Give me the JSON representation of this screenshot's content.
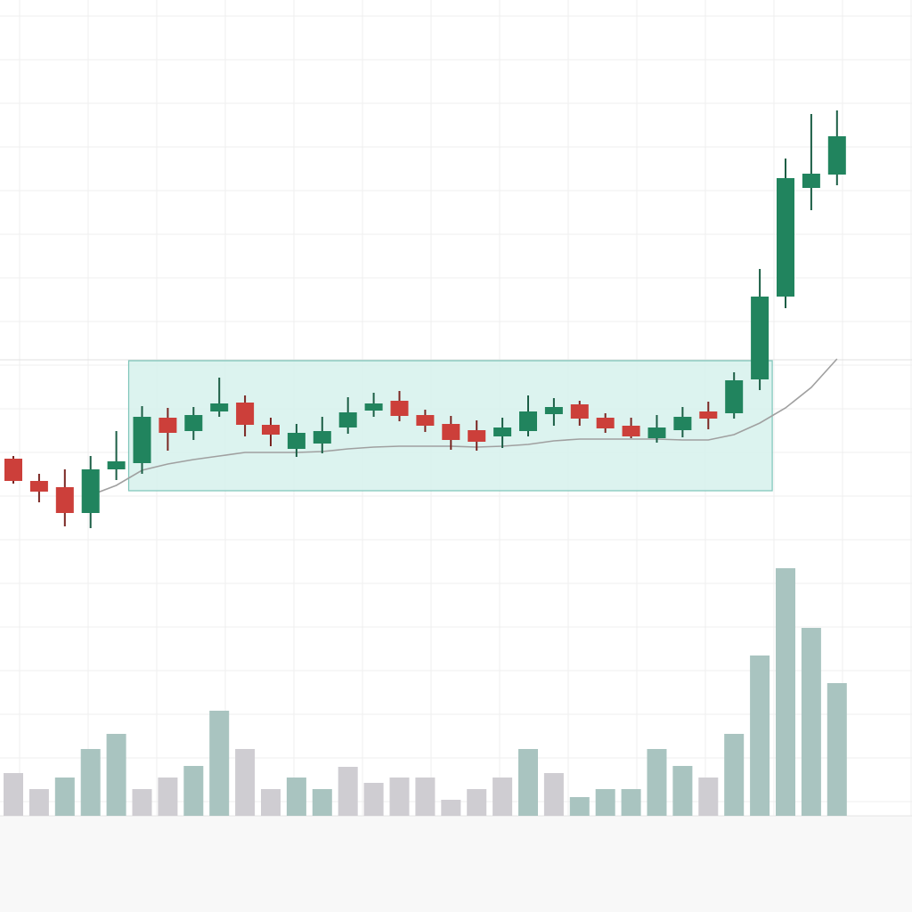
{
  "chart_data": {
    "type": "candlestick",
    "title": "",
    "xlabel": "",
    "ylabel": "",
    "grid": true,
    "legend": "none",
    "ylim": [
      0,
      100
    ],
    "colors": {
      "up": "#21845e",
      "down": "#cc3f3a",
      "volume_up": "#a9c4c0",
      "volume_down": "#cfcdd2",
      "moving_average": "#a0a0a0",
      "highlight_fill": "#d6f1ec",
      "highlight_border": "#7cc4b8"
    },
    "candles": [
      {
        "o": 48.5,
        "h": 48.8,
        "l": 45.7,
        "c": 46.0
      },
      {
        "o": 46.0,
        "h": 46.8,
        "l": 43.6,
        "c": 44.8
      },
      {
        "o": 45.3,
        "h": 47.3,
        "l": 40.9,
        "c": 42.4
      },
      {
        "o": 42.4,
        "h": 48.8,
        "l": 40.7,
        "c": 47.3
      },
      {
        "o": 47.3,
        "h": 51.6,
        "l": 46.1,
        "c": 48.2
      },
      {
        "o": 48.0,
        "h": 54.4,
        "l": 46.8,
        "c": 53.2
      },
      {
        "o": 53.1,
        "h": 54.2,
        "l": 49.4,
        "c": 51.4
      },
      {
        "o": 51.6,
        "h": 54.3,
        "l": 50.6,
        "c": 53.4
      },
      {
        "o": 53.8,
        "h": 57.6,
        "l": 53.2,
        "c": 54.7
      },
      {
        "o": 54.8,
        "h": 55.6,
        "l": 51.0,
        "c": 52.3
      },
      {
        "o": 52.3,
        "h": 53.1,
        "l": 49.9,
        "c": 51.2
      },
      {
        "o": 49.6,
        "h": 52.4,
        "l": 48.7,
        "c": 51.4
      },
      {
        "o": 50.2,
        "h": 53.2,
        "l": 49.1,
        "c": 51.6
      },
      {
        "o": 52.0,
        "h": 55.4,
        "l": 51.3,
        "c": 53.7
      },
      {
        "o": 53.9,
        "h": 55.9,
        "l": 53.2,
        "c": 54.7
      },
      {
        "o": 55.0,
        "h": 56.1,
        "l": 52.7,
        "c": 53.3
      },
      {
        "o": 53.4,
        "h": 54.0,
        "l": 51.5,
        "c": 52.2
      },
      {
        "o": 52.4,
        "h": 53.3,
        "l": 49.5,
        "c": 50.6
      },
      {
        "o": 51.7,
        "h": 52.8,
        "l": 49.4,
        "c": 50.4
      },
      {
        "o": 51.0,
        "h": 53.1,
        "l": 49.7,
        "c": 52.0
      },
      {
        "o": 51.6,
        "h": 55.6,
        "l": 51.0,
        "c": 53.8
      },
      {
        "o": 53.5,
        "h": 55.3,
        "l": 52.2,
        "c": 54.3
      },
      {
        "o": 54.6,
        "h": 55.0,
        "l": 52.2,
        "c": 53.0
      },
      {
        "o": 53.1,
        "h": 53.6,
        "l": 51.4,
        "c": 51.9
      },
      {
        "o": 52.2,
        "h": 53.1,
        "l": 50.8,
        "c": 51.0
      },
      {
        "o": 50.8,
        "h": 53.4,
        "l": 50.3,
        "c": 52.0
      },
      {
        "o": 51.7,
        "h": 54.3,
        "l": 50.9,
        "c": 53.2
      },
      {
        "o": 53.8,
        "h": 54.9,
        "l": 51.8,
        "c": 53.0
      },
      {
        "o": 53.6,
        "h": 58.2,
        "l": 53.0,
        "c": 57.3
      },
      {
        "o": 57.4,
        "h": 69.8,
        "l": 56.2,
        "c": 66.7
      },
      {
        "o": 66.7,
        "h": 82.2,
        "l": 65.4,
        "c": 80.0
      },
      {
        "o": 78.9,
        "h": 87.2,
        "l": 76.4,
        "c": 80.5
      },
      {
        "o": 80.4,
        "h": 87.6,
        "l": 79.2,
        "c": 84.7
      }
    ],
    "volume": [
      48,
      30,
      43,
      75,
      92,
      30,
      43,
      56,
      118,
      75,
      30,
      43,
      30,
      55,
      37,
      43,
      43,
      18,
      30,
      43,
      75,
      48,
      21,
      30,
      30,
      75,
      56,
      43,
      92,
      180,
      278,
      211,
      149
    ],
    "volume_color": [
      "down",
      "down",
      "up",
      "up",
      "up",
      "down",
      "down",
      "up",
      "up",
      "down",
      "down",
      "up",
      "up",
      "down",
      "down",
      "down",
      "down",
      "down",
      "down",
      "down",
      "up",
      "down",
      "up",
      "up",
      "up",
      "up",
      "up",
      "down",
      "up",
      "up",
      "up",
      "up",
      "up"
    ],
    "moving_average": [
      null,
      null,
      null,
      44.4,
      45.5,
      47.2,
      47.9,
      48.4,
      48.8,
      49.2,
      49.2,
      49.2,
      49.3,
      49.6,
      49.8,
      49.9,
      49.9,
      49.9,
      49.8,
      49.9,
      50.1,
      50.5,
      50.7,
      50.7,
      50.7,
      50.7,
      50.6,
      50.6,
      51.2,
      52.5,
      54.2,
      56.5,
      59.7
    ],
    "highlight_range": {
      "start_candle": 6,
      "end_candle": 30,
      "price_high": 59.5,
      "price_low": 44.9
    }
  }
}
